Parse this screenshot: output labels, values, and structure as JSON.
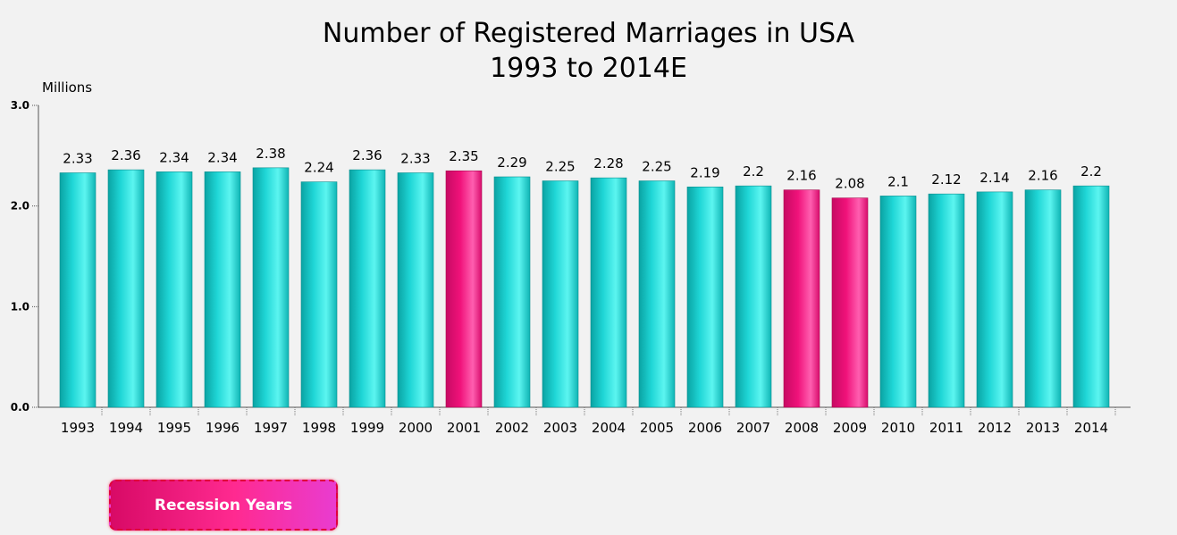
{
  "chart_data": {
    "type": "bar",
    "title": "Number of Registered Marriages in USA",
    "subtitle": "1993 to 2014E",
    "ylabel": "Millions",
    "xlabel": "",
    "ylim": [
      0,
      3
    ],
    "yticks": [
      "0.0",
      "1.0",
      "2.0",
      "3.0"
    ],
    "grid": false,
    "categories": [
      "1993",
      "1994",
      "1995",
      "1996",
      "1997",
      "1998",
      "1999",
      "2000",
      "2001",
      "2002",
      "2003",
      "2004",
      "2005",
      "2006",
      "2007",
      "2008",
      "2009",
      "2010",
      "2011",
      "2012",
      "2013",
      "2014"
    ],
    "values": [
      2.33,
      2.36,
      2.34,
      2.34,
      2.38,
      2.24,
      2.36,
      2.33,
      2.35,
      2.29,
      2.25,
      2.28,
      2.25,
      2.19,
      2.2,
      2.16,
      2.08,
      2.1,
      2.12,
      2.14,
      2.16,
      2.2
    ],
    "data_labels": [
      "2.33",
      "2.36",
      "2.34",
      "2.34",
      "2.38",
      "2.24",
      "2.36",
      "2.33",
      "2.35",
      "2.29",
      "2.25",
      "2.28",
      "2.25",
      "2.19",
      "2.2",
      "2.16",
      "2.08",
      "2.1",
      "2.12",
      "2.14",
      "2.16",
      "2.2"
    ],
    "highlighted_categories": [
      "2001",
      "2008",
      "2009"
    ],
    "colors": {
      "normal": "#14c4c4",
      "recession": "#f0127a"
    }
  },
  "legend": {
    "label": "Recession Years"
  }
}
